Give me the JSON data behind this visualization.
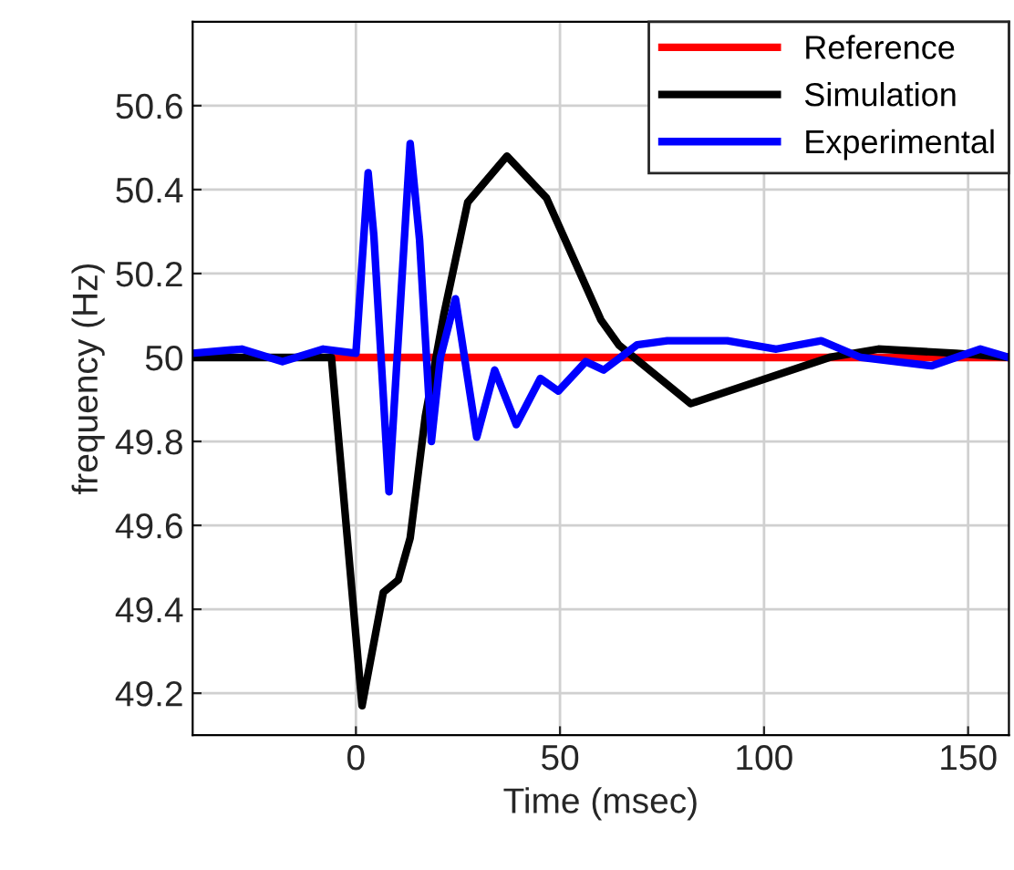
{
  "chart_data": {
    "type": "line",
    "xlabel": "Time (msec)",
    "ylabel": "frequency (Hz)",
    "xlim": [
      -40,
      160
    ],
    "xticks": [
      0,
      50,
      100,
      150
    ],
    "ylim": [
      49.1,
      50.8
    ],
    "yticks": [
      49.2,
      49.4,
      49.6,
      49.8,
      50,
      50.2,
      50.4,
      50.6
    ],
    "grid": true,
    "legend": "top right",
    "marker": "none",
    "line_style": "solid",
    "series": [
      {
        "name": "Reference",
        "color": "#ff0000",
        "x": [
          -5,
          160
        ],
        "values": [
          50,
          50
        ]
      },
      {
        "name": "Simulation",
        "color": "#000000",
        "x": [
          -40,
          -6,
          1.5,
          6.7,
          10.4,
          13.3,
          17,
          21.5,
          27.4,
          37,
          46.7,
          60,
          64.4,
          82,
          116,
          128,
          147,
          160
        ],
        "values": [
          50,
          50,
          49.17,
          49.44,
          49.47,
          49.57,
          49.86,
          50.1,
          50.37,
          50.48,
          50.38,
          50.09,
          50.03,
          49.89,
          50,
          50.02,
          50.01,
          50
        ]
      },
      {
        "name": "Experimental",
        "color": "#0000ff",
        "x": [
          -40,
          -28,
          -18,
          -8,
          0,
          3,
          4.4,
          8.1,
          13.3,
          15.6,
          18.5,
          20.7,
          24.4,
          29.6,
          34,
          39.3,
          45.2,
          49.6,
          56.3,
          60.7,
          68.9,
          76.3,
          91,
          103,
          114,
          123.7,
          141,
          153,
          160
        ],
        "values": [
          50.01,
          50.02,
          49.99,
          50.02,
          50.01,
          50.44,
          50.29,
          49.68,
          50.51,
          50.28,
          49.8,
          50,
          50.14,
          49.81,
          49.97,
          49.84,
          49.95,
          49.92,
          49.99,
          49.97,
          50.03,
          50.04,
          50.04,
          50.02,
          50.04,
          50,
          49.98,
          50.02,
          50
        ]
      }
    ]
  }
}
